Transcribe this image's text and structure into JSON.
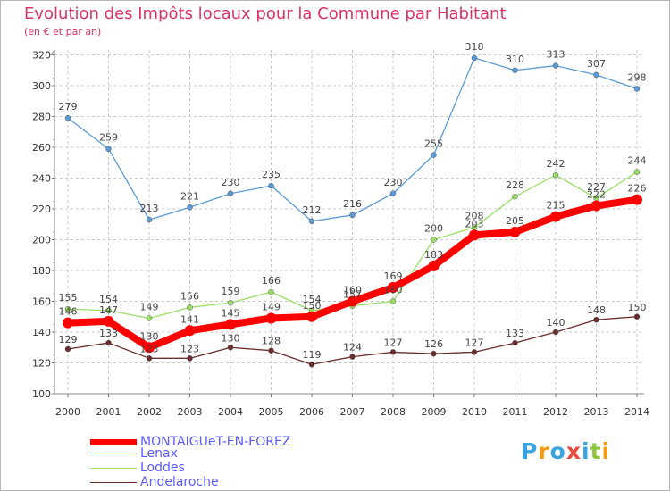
{
  "chart_data": {
    "type": "line",
    "title": "Evolution des Impôts locaux pour la Commune par Habitant",
    "subtitle": "(en € et par an)",
    "x": [
      "2000",
      "2001",
      "2002",
      "2003",
      "2004",
      "2005",
      "2006",
      "2007",
      "2008",
      "2009",
      "2010",
      "2011",
      "2012",
      "2013",
      "2014"
    ],
    "ylim": [
      100,
      320
    ],
    "yticks": [
      "100",
      "120",
      "140",
      "160",
      "180",
      "200",
      "220",
      "240",
      "260",
      "280",
      "300",
      "320"
    ],
    "grid": true,
    "legend_position": "bottom-left",
    "series": [
      {
        "name": "MONTAIGUeT-EN-FOREZ",
        "color": "#ff0000",
        "values": [
          146,
          147,
          130,
          141,
          145,
          149,
          150,
          160,
          169,
          183,
          203,
          205,
          215,
          222,
          226
        ],
        "labels": [
          "146",
          "147",
          "130",
          "141",
          "145",
          "149",
          "150",
          "160",
          "169",
          "183",
          "203",
          "205",
          "215",
          "222",
          "226"
        ]
      },
      {
        "name": "Lenax",
        "color": "#5b9bd5",
        "values": [
          279,
          259,
          213,
          221,
          230,
          235,
          212,
          216,
          230,
          255,
          318,
          310,
          313,
          307,
          298
        ],
        "labels": [
          "279",
          "259",
          "213",
          "221",
          "230",
          "235",
          "212",
          "216",
          "230",
          "255",
          "318",
          "310",
          "313",
          "307",
          "298"
        ]
      },
      {
        "name": "Loddes",
        "color": "#99dd66",
        "values": [
          155,
          154,
          149,
          156,
          159,
          166,
          154,
          157,
          160,
          200,
          208,
          228,
          242,
          227,
          244
        ],
        "labels": [
          "155",
          "154",
          "149",
          "156",
          "159",
          "166",
          "154",
          "157",
          "160",
          "200",
          "208",
          "228",
          "242",
          "227",
          "244"
        ]
      },
      {
        "name": "Andelaroche",
        "color": "#6b2c2c",
        "values": [
          129,
          133,
          123,
          123,
          130,
          128,
          119,
          124,
          127,
          126,
          127,
          133,
          140,
          148,
          150
        ],
        "labels": [
          "129",
          "133",
          "123",
          "123",
          "130",
          "128",
          "119",
          "124",
          "127",
          "126",
          "127",
          "133",
          "140",
          "148",
          "150"
        ]
      }
    ]
  },
  "logo": {
    "letters": [
      "P",
      "r",
      "o",
      "x",
      "i",
      "t",
      "i"
    ],
    "colors": [
      "#3aa3e0",
      "#f39c12",
      "#3aa3e0",
      "#e84c3d",
      "#3aa3e0",
      "#8cc63f",
      "#f39c12"
    ]
  }
}
